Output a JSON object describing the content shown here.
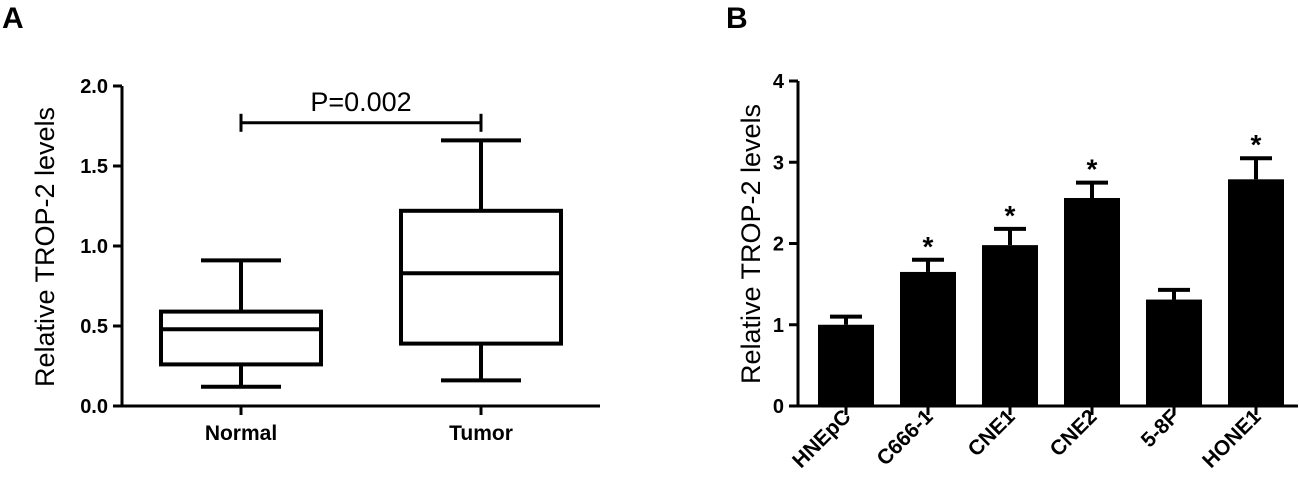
{
  "chart_data": [
    {
      "panel": "A",
      "type": "box",
      "ylabel": "Relative TROP-2 levels",
      "ylim": [
        0,
        2.0
      ],
      "yticks": [
        "0.0",
        "0.5",
        "1.0",
        "1.5",
        "2.0"
      ],
      "categories": [
        "Normal",
        "Tumor"
      ],
      "boxes": [
        {
          "category": "Normal",
          "min": 0.12,
          "q1": 0.26,
          "median": 0.48,
          "q3": 0.59,
          "max": 0.91
        },
        {
          "category": "Tumor",
          "min": 0.16,
          "q1": 0.39,
          "median": 0.83,
          "q3": 1.22,
          "max": 1.66
        }
      ],
      "annotation": {
        "text": "P=0.002",
        "from": "Normal",
        "to": "Tumor",
        "y": 1.77
      }
    },
    {
      "panel": "B",
      "type": "bar",
      "ylabel": "Relative TROP-2 levels",
      "ylim": [
        0,
        4
      ],
      "yticks": [
        "0",
        "1",
        "2",
        "3",
        "4"
      ],
      "categories": [
        "HNEpC",
        "C666-1",
        "CNE1",
        "CNE2",
        "5-8F",
        "HONE1"
      ],
      "values": [
        1.0,
        1.65,
        1.98,
        2.56,
        1.31,
        2.79
      ],
      "errors": [
        0.1,
        0.15,
        0.2,
        0.19,
        0.12,
        0.26
      ],
      "significance": [
        "",
        "*",
        "*",
        "*",
        "",
        "*"
      ]
    }
  ]
}
